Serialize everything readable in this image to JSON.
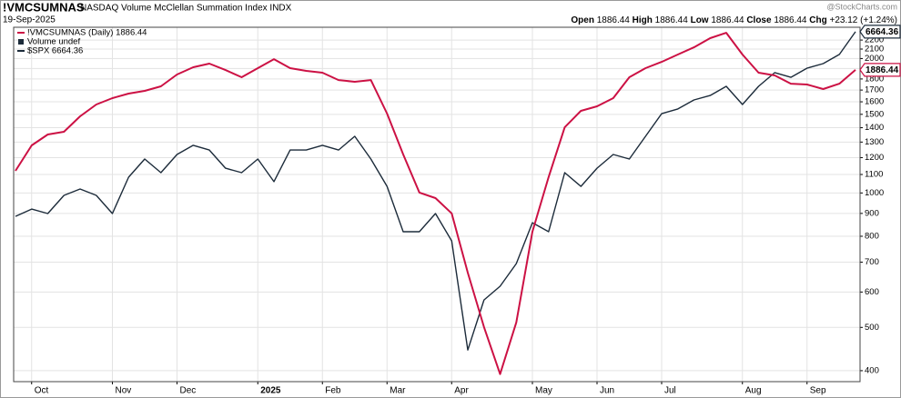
{
  "chart_data": {
    "type": "line",
    "title": "!VMCSUMNAS",
    "subtitle": "NASDAQ Volume McClellan Summation Index INDX",
    "date": "19-Sep-2025",
    "watermark": "@StockCharts.com",
    "quote": [
      {
        "label": "Open",
        "value": "1886.44"
      },
      {
        "label": "High",
        "value": "1886.44"
      },
      {
        "label": "Low",
        "value": "1886.44"
      },
      {
        "label": "Close",
        "value": "1886.44"
      },
      {
        "label": "Chg",
        "value": "+23.12 (+1.24%)"
      }
    ],
    "legend_extra": [
      "Volume undef"
    ],
    "categories": [
      null,
      "Oct",
      null,
      null,
      null,
      null,
      "Nov",
      null,
      null,
      null,
      "Dec",
      null,
      null,
      null,
      null,
      "2025",
      null,
      null,
      null,
      "Feb",
      null,
      null,
      null,
      "Mar",
      null,
      null,
      null,
      "Apr",
      null,
      null,
      null,
      null,
      "May",
      null,
      null,
      null,
      "Jun",
      null,
      null,
      null,
      "Jul",
      null,
      null,
      null,
      null,
      "Aug",
      null,
      null,
      null,
      "Sep",
      null,
      null,
      null
    ],
    "ylog": true,
    "ylim": [
      378,
      2350
    ],
    "yticks": [
      400,
      500,
      600,
      700,
      800,
      900,
      1000,
      1100,
      1200,
      1300,
      1400,
      1500,
      1600,
      1700,
      1800,
      1900,
      2000,
      2100,
      2200
    ],
    "y2lim": [
      4951,
      6686
    ],
    "grid": true,
    "series": [
      {
        "name": "!VMCSUMNAS (Daily) 1886.44",
        "color": "#cc1144",
        "values": [
          1121,
          1278,
          1352,
          1371,
          1485,
          1578,
          1631,
          1669,
          1693,
          1733,
          1842,
          1912,
          1948,
          1885,
          1816,
          1903,
          1994,
          1903,
          1877,
          1859,
          1790,
          1774,
          1790,
          1506,
          1220,
          1002,
          974,
          900,
          663,
          501,
          393,
          513,
          819,
          1085,
          1403,
          1527,
          1563,
          1631,
          1816,
          1903,
          1966,
          2042,
          2119,
          2221,
          2284,
          2042,
          1859,
          1833,
          1757,
          1749,
          1709,
          1757,
          1886.44
        ]
      },
      {
        "name": "$SPX 6664.36",
        "color": "#1c2b3a",
        "axis": "y2",
        "values": [
          5760,
          5796,
          5774,
          5863,
          5894,
          5863,
          5774,
          5952,
          6041,
          5974,
          6063,
          6108,
          6085,
          5996,
          5974,
          6041,
          5930,
          6085,
          6085,
          6108,
          6085,
          6152,
          6041,
          5907,
          5685,
          5685,
          5774,
          5640,
          5106,
          5351,
          5418,
          5529,
          5729,
          5685,
          5974,
          5907,
          5996,
          6063,
          6041,
          6152,
          6263,
          6286,
          6330,
          6352,
          6397,
          6308,
          6397,
          6464,
          6441,
          6486,
          6508,
          6553,
          6664.36
        ]
      }
    ]
  }
}
